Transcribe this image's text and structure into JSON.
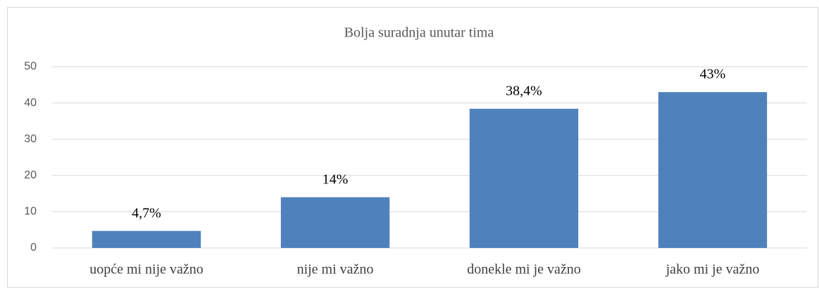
{
  "chart_data": {
    "type": "bar",
    "title": "Bolja suradnja unutar tima",
    "categories": [
      "uopće mi nije važno",
      "nije mi važno",
      "donekle mi je važno",
      "jako mi je važno"
    ],
    "values": [
      4.7,
      14,
      38.4,
      43
    ],
    "value_labels": [
      "4,7%",
      "14%",
      "38,4%",
      "43%"
    ],
    "color": "#4f81bd",
    "ylim": [
      0,
      50
    ],
    "yticks": [
      0,
      10,
      20,
      30,
      40,
      50
    ],
    "grid": true
  }
}
